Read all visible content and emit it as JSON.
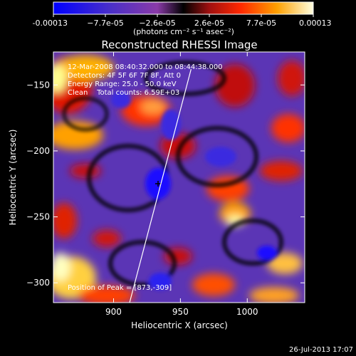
{
  "chart_data": {
    "type": "heatmap",
    "title": "Reconstructed RHESSI Image",
    "xlabel": "Heliocentric X (arcsec)",
    "ylabel": "Heliocentric Y (arcsec)",
    "xlim": [
      855,
      1043
    ],
    "ylim": [
      -315,
      -125
    ],
    "x_ticks": [
      900,
      950,
      1000
    ],
    "y_ticks": [
      -150,
      -200,
      -250,
      -300
    ],
    "colorbar": {
      "tick_labels": [
        "-0.00013",
        "−7.7e-05",
        "−2.6e-05",
        "2.6e-05",
        "7.7e-05",
        "0.00013"
      ],
      "unit_label": "(photons cm⁻² s⁻¹ asec⁻²)",
      "colors": [
        "#0000ff",
        "#5b2bb0",
        "#8a3aa8",
        "#000000",
        "#b81818",
        "#ff3000",
        "#ffa000",
        "#ffffe0"
      ]
    },
    "annotations": {
      "time_range": "12-Mar-2008 08:40:32.000 to 08:44:38.000",
      "detectors": "Detectors: 4F 5F 6F 7F 8F, Att 0",
      "energy_range": "Energy Range: 25.0 - 50.0 keV",
      "clean_counts": "Clean    Total counts: 6.59E+03",
      "peak_position": "Position of Peak = [873,-309]"
    },
    "limb_line": {
      "x": [
        912,
        958
      ],
      "y": [
        -315,
        -138
      ]
    },
    "peak": {
      "x": 873,
      "y": -309
    }
  },
  "footer": {
    "timestamp": "26-Jul-2013 17:07"
  }
}
